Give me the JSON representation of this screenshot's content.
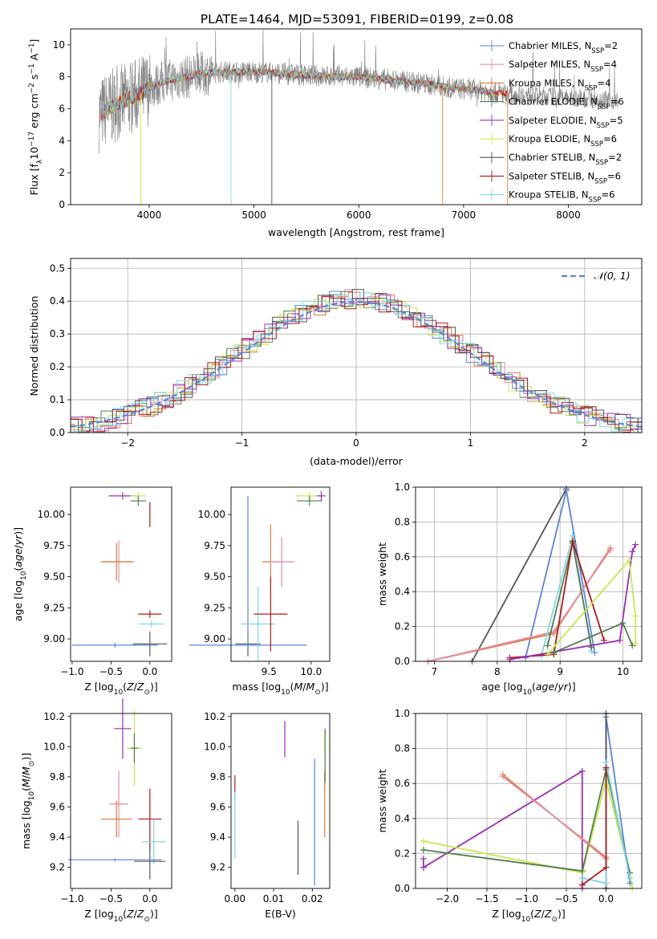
{
  "figure_title": "PLATE=1464, MJD=53091, FIBERID=0199, z=0.08",
  "legend_labels": [
    {
      "base": "Chabrier MILES, N",
      "sub": "SSP",
      "tail": "=2",
      "color": "#5b84d8"
    },
    {
      "base": "Salpeter MILES, N",
      "sub": "SSP",
      "tail": "=4",
      "color": "#e88aa8"
    },
    {
      "base": "Kroupa MILES, N",
      "sub": "SSP",
      "tail": "=4",
      "color": "#e07b39"
    },
    {
      "base": "Chabrier ELODIE, N",
      "sub": "SSP",
      "tail": "=6",
      "color": "#4f7d4f"
    },
    {
      "base": "Salpeter ELODIE, N",
      "sub": "SSP",
      "tail": "=5",
      "color": "#9a2fb5"
    },
    {
      "base": "Kroupa ELODIE, N",
      "sub": "SSP",
      "tail": "=6",
      "color": "#c7e84a"
    },
    {
      "base": "Chabrier STELIB, N",
      "sub": "SSP",
      "tail": "=2",
      "color": "#555555"
    },
    {
      "base": "Salpeter STELIB, N",
      "sub": "SSP",
      "tail": "=6",
      "color": "#b01818"
    },
    {
      "base": "Kroupa STELIB, N",
      "sub": "SSP",
      "tail": "=6",
      "color": "#7ed8e6"
    }
  ],
  "chart_data": [
    {
      "id": "spectrum",
      "type": "line",
      "xlabel": "wavelength [Angstrom, rest frame]",
      "ylabel": "Flux [f",
      "ylabel_parts": [
        "Flux [f",
        "λ",
        "10",
        "−17",
        " erg cm",
        "−2",
        " s",
        "−1",
        " A",
        "−1",
        "]"
      ],
      "xlim": [
        3250,
        8700
      ],
      "ylim": [
        0,
        11
      ],
      "xticks": [
        4000,
        5000,
        6000,
        7000,
        8000
      ],
      "yticks": [
        0,
        2,
        4,
        6,
        8,
        10
      ],
      "continuum": {
        "x": [
          3520,
          3600,
          3700,
          3800,
          3900,
          4000,
          4100,
          4200,
          4300,
          4500,
          4700,
          4900,
          5100,
          5300,
          5500,
          5800,
          6000,
          6300,
          6600,
          6900,
          7100,
          7300,
          7500
        ],
        "y": [
          5.6,
          6.0,
          6.3,
          6.6,
          6.9,
          7.3,
          7.6,
          7.8,
          7.9,
          8.2,
          8.3,
          8.3,
          8.3,
          8.2,
          8.1,
          8.0,
          8.0,
          7.8,
          7.6,
          7.3,
          7.2,
          7.0,
          6.9
        ]
      },
      "grid": false
    },
    {
      "id": "residuals",
      "type": "line",
      "xlabel": "(data-model)/error",
      "ylabel": "Normed distribution",
      "legend_label": "𝒩(0, 1)",
      "xlim": [
        -2.5,
        2.5
      ],
      "ylim": [
        0,
        0.53
      ],
      "xticks": [
        -2,
        -1,
        0,
        1,
        2
      ],
      "yticks": [
        0.0,
        0.1,
        0.2,
        0.3,
        0.4,
        0.5
      ],
      "grid": true
    },
    {
      "id": "age_vs_Z",
      "type": "errorbar",
      "xlabel": "Z [log10(Z/Z⊙)]",
      "ylabel": "age  [log10(age/yr)]",
      "xlim": [
        -1.02,
        0.28
      ],
      "ylim": [
        8.82,
        10.22
      ],
      "xticks": [
        -1.0,
        -0.5,
        0.0
      ],
      "yticks": [
        9.0,
        9.25,
        9.5,
        9.75,
        10.0
      ],
      "points": [
        {
          "x": -0.4,
          "y": 9.62,
          "xerr": 0.2,
          "yerr": 0.17,
          "color": "#e88aa8"
        },
        {
          "x": -0.43,
          "y": 9.62,
          "xerr": 0.2,
          "yerr": 0.15,
          "color": "#e07b39"
        },
        {
          "x": -0.35,
          "y": 10.15,
          "xerr": 0.18,
          "yerr": 0.03,
          "color": "#9a2fb5"
        },
        {
          "x": -0.15,
          "y": 10.15,
          "xerr": 0.1,
          "yerr": 0.03,
          "color": "#c7e84a"
        },
        {
          "x": -0.15,
          "y": 10.11,
          "xerr": 0.1,
          "yerr": 0.04,
          "color": "#4f7d4f"
        },
        {
          "x": 0.0,
          "y": 9.2,
          "xerr": 0.15,
          "yerr": 0.03,
          "color": "#b01818"
        },
        {
          "x": 0.0,
          "y": 10.0,
          "xerr": 0.0,
          "yerr": 0.1,
          "color": "#b01818"
        },
        {
          "x": 0.02,
          "y": 9.12,
          "xerr": 0.16,
          "yerr": 0.03,
          "color": "#7ed8e6"
        },
        {
          "x": 0.0,
          "y": 8.96,
          "xerr": 0.22,
          "yerr": 0.1,
          "color": "#555555"
        },
        {
          "x": -0.45,
          "y": 8.95,
          "xerr": 0.55,
          "yerr": 0.02,
          "color": "#5b84d8"
        }
      ]
    },
    {
      "id": "age_vs_mass",
      "type": "errorbar",
      "xlabel": "mass [log10(M/M⊙)]",
      "ylabel": "",
      "xlim": [
        9.05,
        10.22
      ],
      "ylim": [
        8.82,
        10.22
      ],
      "xticks": [
        9.5,
        10.0
      ],
      "yticks": [
        9.0,
        9.25,
        9.5,
        9.75,
        10.0
      ],
      "points": [
        {
          "x": 9.25,
          "y": 8.96,
          "xerr": 0.15,
          "yerr": 0.1,
          "color": "#555555"
        },
        {
          "x": 9.25,
          "y": 9.55,
          "xerr": 0.0,
          "yerr": 0.6,
          "color": "#5b84d8"
        },
        {
          "x": 9.25,
          "y": 8.95,
          "xerr": 0.7,
          "yerr": 0.02,
          "color": "#5b84d8"
        },
        {
          "x": 9.37,
          "y": 9.12,
          "xerr": 0.2,
          "yerr": 0.3,
          "color": "#7ed8e6"
        },
        {
          "x": 9.52,
          "y": 9.62,
          "xerr": 0.1,
          "yerr": 0.3,
          "color": "#e07b39"
        },
        {
          "x": 9.65,
          "y": 9.62,
          "xerr": 0.15,
          "yerr": 0.2,
          "color": "#e88aa8"
        },
        {
          "x": 9.52,
          "y": 9.2,
          "xerr": 0.2,
          "yerr": 0.3,
          "color": "#b01818"
        },
        {
          "x": 9.98,
          "y": 10.15,
          "xerr": 0.16,
          "yerr": 0.03,
          "color": "#c7e84a"
        },
        {
          "x": 9.98,
          "y": 10.11,
          "xerr": 0.15,
          "yerr": 0.04,
          "color": "#4f7d4f"
        },
        {
          "x": 10.12,
          "y": 10.15,
          "xerr": 0.05,
          "yerr": 0.04,
          "color": "#9a2fb5"
        }
      ]
    },
    {
      "id": "massweight_vs_age",
      "type": "line",
      "xlabel": "age  [log10(age/yr)]",
      "ylabel": "mass weight",
      "xlim": [
        6.7,
        10.3
      ],
      "ylim": [
        0.0,
        1.0
      ],
      "xticks": [
        7,
        8,
        9,
        10
      ],
      "yticks": [
        0.0,
        0.2,
        0.4,
        0.6,
        0.8,
        1.0
      ],
      "grid": true,
      "series": [
        {
          "color": "#555555",
          "x": [
            7.6,
            9.1
          ],
          "y": [
            0.0,
            0.99
          ]
        },
        {
          "color": "#5b84d8",
          "x": [
            8.45,
            9.1,
            9.55
          ],
          "y": [
            0.02,
            0.98,
            0.05
          ]
        },
        {
          "color": "#e07b39",
          "x": [
            6.9,
            8.9,
            9.8
          ],
          "y": [
            0.0,
            0.16,
            0.65
          ]
        },
        {
          "color": "#e88aa8",
          "x": [
            6.9,
            8.9,
            9.8
          ],
          "y": [
            0.0,
            0.17,
            0.64
          ]
        },
        {
          "color": "#7ed8e6",
          "x": [
            8.7,
            9.2,
            9.5
          ],
          "y": [
            0.03,
            0.72,
            0.06
          ]
        },
        {
          "color": "#4f7d4f",
          "x": [
            8.8,
            9.2,
            9.5
          ],
          "y": [
            0.09,
            0.68,
            0.08
          ]
        },
        {
          "color": "#b01818",
          "x": [
            8.2,
            8.9,
            9.2,
            9.7
          ],
          "y": [
            0.02,
            0.04,
            0.69,
            0.12
          ]
        },
        {
          "color": "#9a2fb5",
          "x": [
            8.2,
            9.95,
            10.15,
            10.2
          ],
          "y": [
            0.01,
            0.12,
            0.63,
            0.67
          ]
        },
        {
          "color": "#c7e84a",
          "x": [
            8.8,
            10.1,
            10.2,
            10.2
          ],
          "y": [
            0.04,
            0.58,
            0.26,
            0.1
          ]
        },
        {
          "color": "#4f7d4f",
          "x": [
            8.9,
            10.0,
            10.15
          ],
          "y": [
            0.05,
            0.22,
            0.09
          ]
        }
      ]
    },
    {
      "id": "mass_vs_Z",
      "type": "errorbar",
      "xlabel": "Z [log10(Z/Z⊙)]",
      "ylabel": "mass [log10(M/M⊙)]",
      "xlim": [
        -1.02,
        0.28
      ],
      "ylim": [
        9.06,
        10.22
      ],
      "xticks": [
        -1.0,
        -0.5,
        0.0
      ],
      "yticks": [
        9.2,
        9.4,
        9.6,
        9.8,
        10.0,
        10.2
      ],
      "points": [
        {
          "x": -0.35,
          "y": 10.12,
          "xerr": 0.11,
          "yerr": 0.2,
          "color": "#9a2fb5"
        },
        {
          "x": -0.2,
          "y": 9.99,
          "xerr": 0.1,
          "yerr": 0.25,
          "color": "#c7e84a"
        },
        {
          "x": -0.2,
          "y": 9.99,
          "xerr": 0.05,
          "yerr": 0.1,
          "color": "#4f7d4f"
        },
        {
          "x": -0.4,
          "y": 9.62,
          "xerr": 0.12,
          "yerr": 0.22,
          "color": "#e88aa8"
        },
        {
          "x": -0.43,
          "y": 9.52,
          "xerr": 0.2,
          "yerr": 0.12,
          "color": "#e07b39"
        },
        {
          "x": 0.0,
          "y": 9.52,
          "xerr": 0.15,
          "yerr": 0.2,
          "color": "#b01818"
        },
        {
          "x": 0.05,
          "y": 9.37,
          "xerr": 0.15,
          "yerr": 0.15,
          "color": "#7ed8e6"
        },
        {
          "x": 0.0,
          "y": 9.24,
          "xerr": 0.2,
          "yerr": 0.12,
          "color": "#555555"
        },
        {
          "x": -0.45,
          "y": 9.25,
          "xerr": 0.6,
          "yerr": 0.01,
          "color": "#5b84d8"
        }
      ]
    },
    {
      "id": "mass_vs_EBV",
      "type": "errorbar",
      "xlabel": "E(B-V)",
      "ylabel": "",
      "xlim": [
        -0.001,
        0.0245
      ],
      "ylim": [
        9.06,
        10.22
      ],
      "xticks": [
        0.0,
        0.01,
        0.02
      ],
      "yticks": [
        9.2,
        9.4,
        9.6,
        9.8,
        10.0,
        10.2
      ],
      "points": [
        {
          "x": 0.0,
          "y": 9.73,
          "xerr": 0.0,
          "yerr": 0.08,
          "color": "#b01818"
        },
        {
          "x": 0.0,
          "y": 9.48,
          "xerr": 0.0,
          "yerr": 0.22,
          "color": "#7ed8e6"
        },
        {
          "x": 0.0129,
          "y": 10.05,
          "xerr": 0.0,
          "yerr": 0.12,
          "color": "#9a2fb5"
        },
        {
          "x": 0.0163,
          "y": 9.33,
          "xerr": 0.0,
          "yerr": 0.18,
          "color": "#555555"
        },
        {
          "x": 0.0206,
          "y": 9.5,
          "xerr": 0.0,
          "yerr": 0.42,
          "color": "#5b84d8"
        },
        {
          "x": 0.0232,
          "y": 9.62,
          "xerr": 0.0,
          "yerr": 0.22,
          "color": "#e07b39"
        },
        {
          "x": 0.0232,
          "y": 10.03,
          "xerr": 0.0,
          "yerr": 0.08,
          "color": "#c7e84a"
        },
        {
          "x": 0.0233,
          "y": 9.94,
          "xerr": 0.0,
          "yerr": 0.18,
          "color": "#4f7d4f"
        }
      ]
    },
    {
      "id": "massweight_vs_Z",
      "type": "line",
      "xlabel": "Z [log10(Z/Z⊙)]",
      "ylabel": "mass weight",
      "xlim": [
        -2.4,
        0.45
      ],
      "ylim": [
        0.0,
        1.0
      ],
      "xticks": [
        -2.0,
        -1.5,
        -1.0,
        -0.5,
        0.0
      ],
      "yticks": [
        0.0,
        0.2,
        0.4,
        0.6,
        0.8,
        1.0
      ],
      "grid": true,
      "series": [
        {
          "color": "#9a2fb5",
          "x": [
            -2.3,
            -0.3,
            -0.3
          ],
          "y": [
            0.12,
            0.67,
            0.0
          ]
        },
        {
          "color": "#9a2fb5",
          "x": [
            -2.3,
            -2.3
          ],
          "y": [
            0.17,
            0.12
          ]
        },
        {
          "color": "#c7e84a",
          "x": [
            -2.3,
            -0.3,
            0.0,
            0.3,
            0.33
          ],
          "y": [
            0.27,
            0.09,
            0.62,
            0.08,
            0.0
          ]
        },
        {
          "color": "#4f7d4f",
          "x": [
            -2.3,
            -0.3,
            0.0,
            0.3
          ],
          "y": [
            0.22,
            0.1,
            0.68,
            0.09
          ]
        },
        {
          "color": "#e07b39",
          "x": [
            -1.3,
            0.0
          ],
          "y": [
            0.65,
            0.17
          ]
        },
        {
          "color": "#e88aa8",
          "x": [
            -1.3,
            0.0
          ],
          "y": [
            0.64,
            0.18
          ]
        },
        {
          "color": "#5b84d8",
          "x": [
            0.0,
            0.0,
            0.3
          ],
          "y": [
            0.0,
            0.98,
            0.03
          ]
        },
        {
          "color": "#555555",
          "x": [
            0.0,
            0.0
          ],
          "y": [
            1.0,
            0.0
          ]
        },
        {
          "color": "#7ed8e6",
          "x": [
            -0.3,
            0.0,
            0.0,
            0.3
          ],
          "y": [
            0.06,
            0.03,
            0.72,
            0.06
          ]
        },
        {
          "color": "#b01818",
          "x": [
            -0.3,
            0.0,
            0.0
          ],
          "y": [
            0.02,
            0.12,
            0.69
          ]
        }
      ]
    }
  ]
}
